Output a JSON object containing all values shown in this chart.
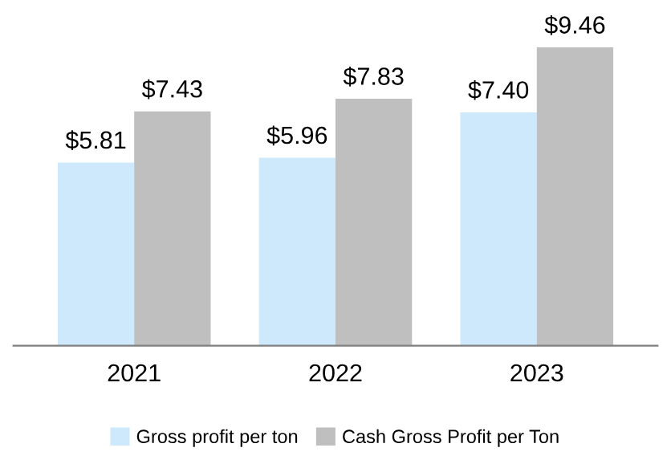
{
  "chart_data": {
    "type": "bar",
    "categories": [
      "2021",
      "2022",
      "2023"
    ],
    "series": [
      {
        "name": "Gross profit per ton",
        "color": "#cde9fb",
        "values": [
          5.81,
          5.96,
          7.4
        ],
        "value_labels": [
          "$5.81",
          "$5.96",
          "$7.40"
        ]
      },
      {
        "name": "Cash Gross Profit per Ton",
        "color": "#bfbfbf",
        "values": [
          7.43,
          7.83,
          9.46
        ],
        "value_labels": [
          "$7.43",
          "$7.83",
          "$9.46"
        ]
      }
    ],
    "legend": "bottom",
    "grid": false
  }
}
